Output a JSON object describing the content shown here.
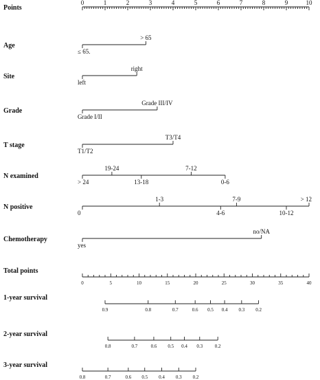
{
  "chart_data": {
    "type": "nomogram",
    "points_axis": {
      "label": "Points",
      "range": [
        0,
        10
      ],
      "ticks": [
        0,
        1,
        2,
        3,
        4,
        5,
        6,
        7,
        8,
        9,
        10
      ]
    },
    "predictors": [
      {
        "label": "Age",
        "levels": [
          {
            "text": "≤ 65.",
            "points": 0,
            "pos": "below"
          },
          {
            "text": "> 65",
            "points": 2.8,
            "pos": "above"
          }
        ]
      },
      {
        "label": "Site",
        "levels": [
          {
            "text": "left",
            "points": 0,
            "pos": "below"
          },
          {
            "text": "right",
            "points": 2.4,
            "pos": "above"
          }
        ]
      },
      {
        "label": "Grade",
        "levels": [
          {
            "text": "Grade I/II",
            "points": 0,
            "pos": "below"
          },
          {
            "text": "Grade III/IV",
            "points": 3.3,
            "pos": "above"
          }
        ]
      },
      {
        "label": "T stage",
        "levels": [
          {
            "text": "T1/T2",
            "points": 0,
            "pos": "below"
          },
          {
            "text": "T3/T4",
            "points": 4.0,
            "pos": "above"
          }
        ]
      },
      {
        "label": "N examined",
        "levels": [
          {
            "text": "> 24",
            "points": 0,
            "pos": "below"
          },
          {
            "text": "19-24",
            "points": 1.3,
            "pos": "above"
          },
          {
            "text": "13-18",
            "points": 2.6,
            "pos": "below"
          },
          {
            "text": "7-12",
            "points": 4.8,
            "pos": "above"
          },
          {
            "text": "0-6",
            "points": 6.3,
            "pos": "below"
          }
        ]
      },
      {
        "label": "N positive",
        "levels": [
          {
            "text": "0",
            "points": 0,
            "pos": "below"
          },
          {
            "text": "1-3",
            "points": 3.4,
            "pos": "above"
          },
          {
            "text": "4-6",
            "points": 6.1,
            "pos": "below"
          },
          {
            "text": "7-9",
            "points": 6.8,
            "pos": "above"
          },
          {
            "text": "10-12",
            "points": 9.0,
            "pos": "below"
          },
          {
            "text": "> 12",
            "points": 10.0,
            "pos": "above"
          }
        ]
      },
      {
        "label": "Chemotherapy",
        "levels": [
          {
            "text": "yes",
            "points": 0,
            "pos": "below"
          },
          {
            "text": "no/NA",
            "points": 7.9,
            "pos": "above"
          }
        ]
      }
    ],
    "total_points_axis": {
      "label": "Total points",
      "range": [
        0,
        40
      ],
      "labeled_ticks": [
        0,
        5,
        10,
        15,
        20,
        25,
        30,
        35,
        40
      ],
      "minor_step": 1
    },
    "survival_axes": [
      {
        "label": "1-year survival",
        "ticks": [
          {
            "text": "0.9",
            "total_points": 4.0
          },
          {
            "text": "0.8",
            "total_points": 11.6
          },
          {
            "text": "0.7",
            "total_points": 16.4
          },
          {
            "text": "0.6",
            "total_points": 19.9
          },
          {
            "text": "0.5",
            "total_points": 22.6
          },
          {
            "text": "0.4",
            "total_points": 25.1
          },
          {
            "text": "0.3",
            "total_points": 28.1
          },
          {
            "text": "0.2",
            "total_points": 31.1
          }
        ]
      },
      {
        "label": "2-year survival",
        "ticks": [
          {
            "text": "0.8",
            "total_points": 4.5
          },
          {
            "text": "0.7",
            "total_points": 9.2
          },
          {
            "text": "0.6",
            "total_points": 12.6
          },
          {
            "text": "0.5",
            "total_points": 15.6
          },
          {
            "text": "0.4",
            "total_points": 18.0
          },
          {
            "text": "0.3",
            "total_points": 20.7
          },
          {
            "text": "0.2",
            "total_points": 23.9
          }
        ]
      },
      {
        "label": "3-year survival",
        "ticks": [
          {
            "text": "0.8",
            "total_points": 0.0
          },
          {
            "text": "0.7",
            "total_points": 4.5
          },
          {
            "text": "0.6",
            "total_points": 8.1
          },
          {
            "text": "0.5",
            "total_points": 11.0
          },
          {
            "text": "0.4",
            "total_points": 14.0
          },
          {
            "text": "0.3",
            "total_points": 17.0
          },
          {
            "text": "0.2",
            "total_points": 20.0
          }
        ]
      }
    ]
  }
}
